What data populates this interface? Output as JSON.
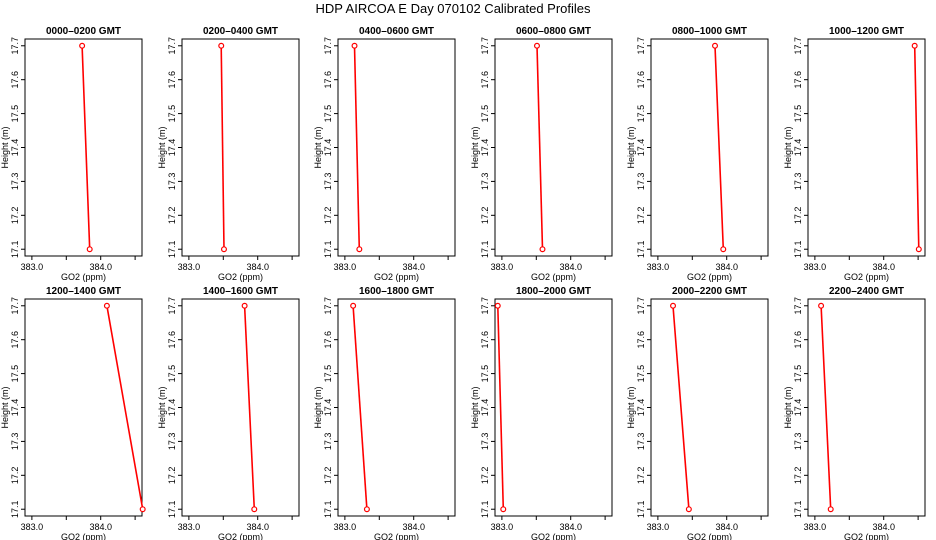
{
  "colors": {
    "line": "#ff0000",
    "frame": "#000000",
    "background": "#ffffff"
  },
  "chart_data": {
    "type": "line",
    "title": "HDP AIRCOA E  Day 070102  Calibrated Profiles",
    "xlabel": "GO2 (ppm)",
    "ylabel": "Height (m)",
    "xlim": [
      382.9,
      384.6
    ],
    "ylim": [
      17.08,
      17.72
    ],
    "x_ticks": [
      383.0,
      383.5,
      384.0,
      384.5
    ],
    "x_tick_labels": [
      "383.0",
      "",
      "384.0",
      ""
    ],
    "y_ticks": [
      17.1,
      17.2,
      17.3,
      17.4,
      17.5,
      17.6,
      17.7
    ],
    "y_tick_labels": [
      "17.1",
      "17.2",
      "17.3",
      "17.4",
      "17.5",
      "17.6",
      "17.7"
    ],
    "panels": [
      {
        "title": "0000–0200 GMT",
        "x": [
          383.73,
          383.84
        ],
        "y": [
          17.7,
          17.1
        ]
      },
      {
        "title": "0200–0400 GMT",
        "x": [
          383.47,
          383.51
        ],
        "y": [
          17.7,
          17.1
        ]
      },
      {
        "title": "0400–0600 GMT",
        "x": [
          383.14,
          383.21
        ],
        "y": [
          17.7,
          17.1
        ]
      },
      {
        "title": "0600–0800 GMT",
        "x": [
          383.51,
          383.59
        ],
        "y": [
          17.7,
          17.1
        ]
      },
      {
        "title": "0800–1000 GMT",
        "x": [
          383.83,
          383.95
        ],
        "y": [
          17.7,
          17.1
        ]
      },
      {
        "title": "1000–1200 GMT",
        "x": [
          384.45,
          384.51
        ],
        "y": [
          17.7,
          17.1
        ]
      },
      {
        "title": "1200–1400 GMT",
        "x": [
          384.09,
          384.61
        ],
        "y": [
          17.7,
          17.1
        ]
      },
      {
        "title": "1400–1600 GMT",
        "x": [
          383.81,
          383.95
        ],
        "y": [
          17.7,
          17.1
        ]
      },
      {
        "title": "1600–1800 GMT",
        "x": [
          383.12,
          383.32
        ],
        "y": [
          17.7,
          17.1
        ]
      },
      {
        "title": "1800–2000 GMT",
        "x": [
          382.94,
          383.02
        ],
        "y": [
          17.7,
          17.1
        ]
      },
      {
        "title": "2000–2200 GMT",
        "x": [
          383.22,
          383.45
        ],
        "y": [
          17.7,
          17.1
        ]
      },
      {
        "title": "2200–2400 GMT",
        "x": [
          383.09,
          383.23
        ],
        "y": [
          17.7,
          17.1
        ]
      }
    ]
  }
}
